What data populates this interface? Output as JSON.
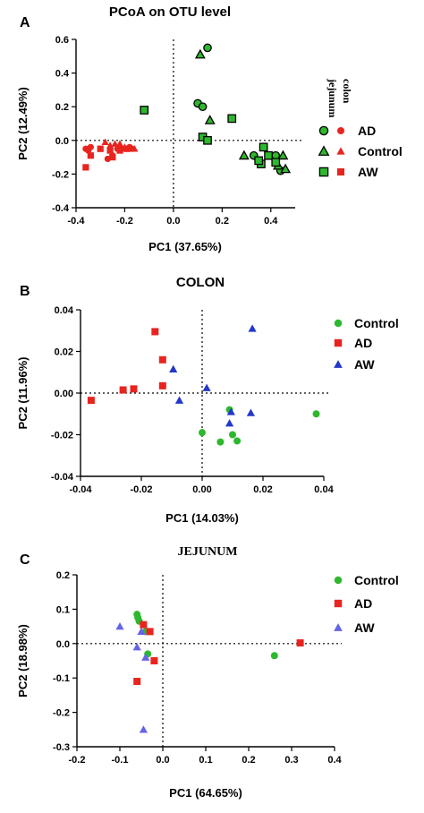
{
  "figure": {
    "panel_letters": [
      "A",
      "B",
      "C"
    ]
  },
  "colors": {
    "green": "#2db82d",
    "red": "#e8241f",
    "blue": "#2338c9",
    "purple": "#6464e6",
    "outline": "#000000"
  },
  "chart_data": [
    {
      "panel": "A",
      "type": "scatter",
      "title": "PCoA on OTU level",
      "xlabel": "PC1 (37.65%)",
      "ylabel": "PC2 (12.49%)",
      "xlim": [
        -0.4,
        0.5
      ],
      "ylim": [
        -0.4,
        0.6
      ],
      "xticks": [
        "-0.4",
        "-0.2",
        "0.0",
        "0.2",
        "0.4"
      ],
      "yticks": [
        "0.6",
        "0.4",
        "0.2",
        "0.0",
        "-0.2",
        "-0.4"
      ],
      "xtick_values": [
        -0.4,
        -0.2,
        0.0,
        0.2,
        0.4
      ],
      "ytick_values": [
        0.6,
        0.4,
        0.2,
        0.0,
        -0.2,
        -0.4
      ],
      "grid": false,
      "reference_lines": "dotted lines at x=0 and y=0",
      "legend": {
        "placement": "right",
        "column_headers": [
          "jejunum",
          "colon"
        ],
        "entries": [
          "AD",
          "Control",
          "AW"
        ]
      },
      "series": [
        {
          "name": "AD",
          "tissue": "jejunum",
          "marker": "circle-outlined",
          "color": "green",
          "x": [
            0.14,
            0.1,
            0.12,
            0.33,
            0.42,
            0.44
          ],
          "y": [
            0.55,
            0.22,
            0.2,
            -0.09,
            -0.09,
            -0.18
          ]
        },
        {
          "name": "Control",
          "tissue": "jejunum",
          "marker": "triangle-outlined",
          "color": "green",
          "x": [
            0.11,
            0.15,
            0.29,
            0.43,
            0.45,
            0.46
          ],
          "y": [
            0.51,
            0.12,
            -0.09,
            -0.15,
            -0.09,
            -0.17
          ]
        },
        {
          "name": "AW",
          "tissue": "jejunum",
          "marker": "square-outlined",
          "color": "green",
          "x": [
            -0.12,
            0.12,
            0.14,
            0.24,
            0.37,
            0.39,
            0.36,
            0.35,
            0.42
          ],
          "y": [
            0.18,
            0.02,
            0.0,
            0.13,
            -0.04,
            -0.09,
            -0.14,
            -0.12,
            -0.13
          ]
        },
        {
          "name": "AD",
          "tissue": "colon",
          "marker": "circle",
          "color": "red",
          "x": [
            -0.36,
            -0.35,
            -0.34,
            -0.27,
            -0.25,
            -0.23,
            -0.21,
            -0.18,
            -0.17
          ],
          "y": [
            -0.05,
            -0.06,
            -0.04,
            -0.11,
            -0.09,
            -0.05,
            -0.05,
            -0.04,
            -0.05
          ]
        },
        {
          "name": "Control",
          "tissue": "colon",
          "marker": "triangle",
          "color": "red",
          "x": [
            -0.28,
            -0.26,
            -0.24,
            -0.22,
            -0.2,
            -0.16
          ],
          "y": [
            -0.01,
            -0.03,
            -0.02,
            -0.02,
            -0.04,
            -0.05
          ]
        },
        {
          "name": "AW",
          "tissue": "colon",
          "marker": "square",
          "color": "red",
          "x": [
            -0.36,
            -0.34,
            -0.3,
            -0.26,
            -0.25,
            -0.22,
            -0.19
          ],
          "y": [
            -0.16,
            -0.09,
            -0.05,
            -0.06,
            -0.1,
            -0.06,
            -0.05
          ]
        }
      ]
    },
    {
      "panel": "B",
      "type": "scatter",
      "title": "COLON",
      "xlabel": "PC1 (14.03%)",
      "ylabel": "PC2 (11.96%)",
      "xlim": [
        -0.04,
        0.04
      ],
      "ylim": [
        -0.04,
        0.04
      ],
      "xticks": [
        "-0.04",
        "-0.02",
        "0.00",
        "0.02",
        "0.04"
      ],
      "yticks": [
        "0.04",
        "0.02",
        "0.00",
        "-0.02",
        "-0.04"
      ],
      "xtick_values": [
        -0.04,
        -0.02,
        0.0,
        0.02,
        0.04
      ],
      "ytick_values": [
        0.04,
        0.02,
        0.0,
        -0.02,
        -0.04
      ],
      "grid": false,
      "reference_lines": "dotted lines at x=0 and y=0",
      "legend": {
        "placement": "right"
      },
      "series": [
        {
          "name": "Control",
          "marker": "circle",
          "color": "green",
          "x": [
            0.0,
            0.006,
            0.009,
            0.01,
            0.0115,
            0.0375
          ],
          "y": [
            -0.019,
            -0.0235,
            -0.008,
            -0.02,
            -0.023,
            -0.01
          ]
        },
        {
          "name": "AD",
          "marker": "square",
          "color": "red",
          "x": [
            -0.0365,
            -0.026,
            -0.0225,
            -0.0155,
            -0.013,
            -0.013
          ],
          "y": [
            -0.0035,
            0.0015,
            0.002,
            0.0295,
            0.016,
            0.0035
          ]
        },
        {
          "name": "AW",
          "marker": "triangle",
          "color": "blue",
          "x": [
            -0.0095,
            -0.0075,
            0.0015,
            0.009,
            0.0095,
            0.0165,
            0.016
          ],
          "y": [
            0.0115,
            -0.0035,
            0.0025,
            -0.0145,
            -0.009,
            0.031,
            -0.0095
          ]
        }
      ]
    },
    {
      "panel": "C",
      "type": "scatter",
      "title": "JEJUNUM",
      "xlabel": "PC1 (64.65%)",
      "ylabel": "PC2 (18.98%)",
      "xlim": [
        -0.2,
        0.4
      ],
      "ylim": [
        -0.3,
        0.2
      ],
      "xticks": [
        "-0.2",
        "-0.1",
        "0.0",
        "0.1",
        "0.2",
        "0.3",
        "0.4"
      ],
      "yticks": [
        "0.2",
        "0.1",
        "0.0",
        "-0.1",
        "-0.2",
        "-0.3"
      ],
      "xtick_values": [
        -0.2,
        -0.1,
        0.0,
        0.1,
        0.2,
        0.3,
        0.4
      ],
      "ytick_values": [
        0.2,
        0.1,
        0.0,
        -0.1,
        -0.2,
        -0.3
      ],
      "grid": false,
      "reference_lines": "dotted lines at x=0 and y=0",
      "legend": {
        "placement": "right"
      },
      "series": [
        {
          "name": "Control",
          "marker": "circle",
          "color": "green",
          "x": [
            -0.06,
            -0.058,
            -0.055,
            -0.04,
            -0.035,
            0.26
          ],
          "y": [
            0.085,
            0.075,
            0.065,
            0.035,
            -0.03,
            -0.035
          ]
        },
        {
          "name": "AD",
          "marker": "square",
          "color": "red",
          "x": [
            -0.06,
            -0.045,
            -0.03,
            -0.02,
            0.32
          ],
          "y": [
            -0.11,
            0.055,
            0.035,
            -0.05,
            0.002
          ]
        },
        {
          "name": "AW",
          "marker": "triangle",
          "color": "purple",
          "x": [
            -0.1,
            -0.06,
            -0.05,
            -0.04,
            -0.045
          ],
          "y": [
            0.05,
            -0.01,
            0.035,
            -0.04,
            -0.25
          ]
        }
      ]
    }
  ]
}
